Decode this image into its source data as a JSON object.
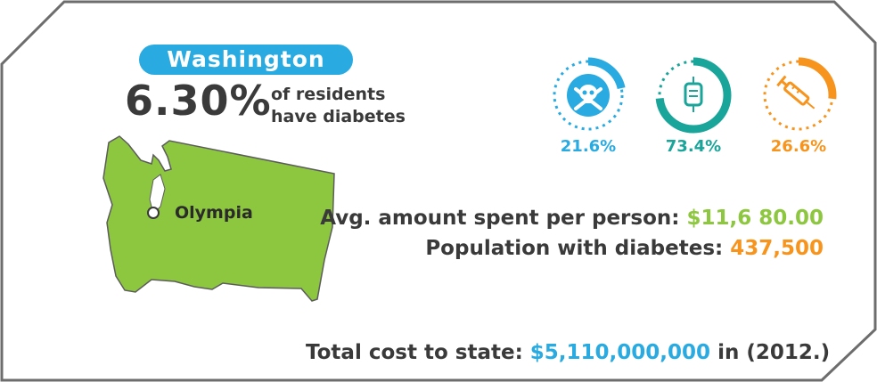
{
  "header": {
    "state_name": "Washington"
  },
  "summary": {
    "percentage": "6.30%",
    "label_line1": "of residents",
    "label_line2": "have diabetes"
  },
  "map": {
    "capital": "Olympia"
  },
  "stats": [
    {
      "icon": "skull-crossbones-icon",
      "value": "21.6%",
      "fraction": 0.216,
      "color": "#29abe2"
    },
    {
      "icon": "iv-bag-icon",
      "value": "73.4%",
      "fraction": 0.734,
      "color": "#1aa59a"
    },
    {
      "icon": "syringe-icon",
      "value": "26.6%",
      "fraction": 0.266,
      "color": "#f7941d"
    }
  ],
  "avg_spent": {
    "label": "Avg. amount spent per person:",
    "value": "$11,6 80.00"
  },
  "population": {
    "label": "Population with diabetes:",
    "value": "437,500"
  },
  "total_cost": {
    "label": "Total cost to state:",
    "value": "$5,110,000,000",
    "in_text": "in",
    "year": "(2012.)"
  },
  "colors": {
    "blue": "#29abe2",
    "teal": "#1aa59a",
    "orange": "#f7941d",
    "green": "#8dc63f",
    "text": "#3a3a3a"
  }
}
